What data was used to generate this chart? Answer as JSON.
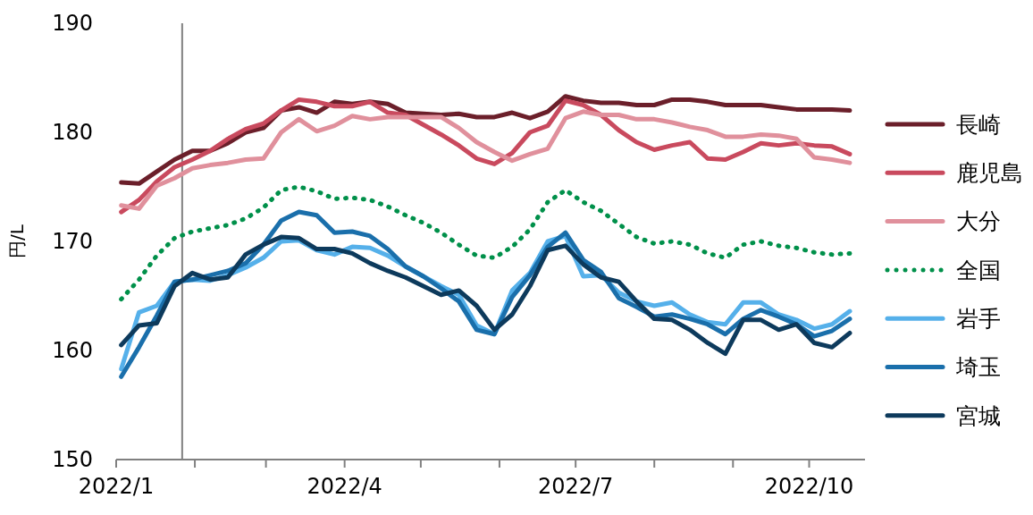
{
  "chart_data": {
    "type": "line",
    "ylabel": "円/L",
    "legend": "right",
    "x": [
      "2022-01-03",
      "2022-01-10",
      "2022-01-17",
      "2022-01-24",
      "2022-01-31",
      "2022-02-07",
      "2022-02-14",
      "2022-02-21",
      "2022-02-28",
      "2022-03-07",
      "2022-03-14",
      "2022-03-21",
      "2022-03-28",
      "2022-04-04",
      "2022-04-11",
      "2022-04-18",
      "2022-04-25",
      "2022-05-02",
      "2022-05-09",
      "2022-05-16",
      "2022-05-23",
      "2022-05-30",
      "2022-06-06",
      "2022-06-13",
      "2022-06-20",
      "2022-06-27",
      "2022-07-04",
      "2022-07-11",
      "2022-07-18",
      "2022-07-25",
      "2022-08-01",
      "2022-08-08",
      "2022-08-15",
      "2022-08-22",
      "2022-08-29",
      "2022-09-05",
      "2022-09-12",
      "2022-09-19",
      "2022-09-26",
      "2022-10-03",
      "2022-10-10",
      "2022-10-17"
    ],
    "xlim": [
      "2022-01-01",
      "2022-10-23"
    ],
    "xticks": [
      {
        "value": "2022-01-01",
        "label": "2022/1"
      },
      {
        "value": "2022-02-01",
        "label": null
      },
      {
        "value": "2022-03-01",
        "label": null
      },
      {
        "value": "2022-04-01",
        "label": "2022/4"
      },
      {
        "value": "2022-05-01",
        "label": null
      },
      {
        "value": "2022-06-01",
        "label": null
      },
      {
        "value": "2022-07-01",
        "label": "2022/7"
      },
      {
        "value": "2022-08-01",
        "label": null
      },
      {
        "value": "2022-09-01",
        "label": null
      },
      {
        "value": "2022-10-01",
        "label": "2022/10"
      }
    ],
    "ylim": [
      150,
      190
    ],
    "yticks": [
      150,
      160,
      170,
      180,
      190
    ],
    "ref_lines": [
      {
        "axis": "x",
        "value": "2022-01-27",
        "color": "#808080"
      }
    ],
    "series": [
      {
        "name": "長崎",
        "color": "#6b1f2a",
        "line_style": "solid",
        "values": [
          175.4,
          175.3,
          176.4,
          177.5,
          178.3,
          178.3,
          179,
          180,
          180.4,
          182,
          182.3,
          181.8,
          182.8,
          182.6,
          182.8,
          182.6,
          181.8,
          181.7,
          181.6,
          181.7,
          181.4,
          181.4,
          181.8,
          181.3,
          181.9,
          183.3,
          182.9,
          182.7,
          182.7,
          182.5,
          182.5,
          183,
          183,
          182.8,
          182.5,
          182.5,
          182.5,
          182.3,
          182.1,
          182.1,
          182.1,
          182
        ]
      },
      {
        "name": "鹿児島",
        "color": "#c94a5e",
        "line_style": "solid",
        "values": [
          172.7,
          173.8,
          175.5,
          176.8,
          177.5,
          178.3,
          179.4,
          180.3,
          180.8,
          182,
          183,
          182.8,
          182.4,
          182.4,
          182.8,
          181.8,
          181.6,
          180.7,
          179.8,
          178.8,
          177.6,
          177.1,
          178.1,
          180,
          180.6,
          182.9,
          182.5,
          181.6,
          180.2,
          179.1,
          178.4,
          178.8,
          179.1,
          177.6,
          177.5,
          178.2,
          179,
          178.8,
          179,
          178.8,
          178.7,
          178
        ]
      },
      {
        "name": "大分",
        "color": "#e0909c",
        "line_style": "solid",
        "values": [
          173.3,
          173,
          175.1,
          175.8,
          176.7,
          177,
          177.2,
          177.5,
          177.6,
          180,
          181.2,
          180.1,
          180.6,
          181.5,
          181.2,
          181.4,
          181.4,
          181.4,
          181.4,
          180.4,
          179.1,
          178.2,
          177.4,
          178,
          178.5,
          181.3,
          181.9,
          181.6,
          181.6,
          181.2,
          181.2,
          180.9,
          180.5,
          180.2,
          179.6,
          179.6,
          179.8,
          179.7,
          179.4,
          177.7,
          177.5,
          177.2
        ]
      },
      {
        "name": "全国",
        "color": "#00904a",
        "line_style": "dotted",
        "values": [
          164.7,
          166.5,
          168.7,
          170.3,
          170.9,
          171.2,
          171.5,
          172.1,
          173.1,
          174.7,
          175,
          174.6,
          173.9,
          174,
          173.8,
          173.2,
          172.4,
          171.7,
          170.8,
          169.7,
          168.7,
          168.5,
          169.5,
          171.1,
          173.6,
          174.7,
          173.6,
          172.8,
          171.6,
          170.4,
          169.8,
          170,
          169.7,
          168.9,
          168.5,
          169.7,
          170,
          169.6,
          169.4,
          169,
          168.8,
          168.9
        ]
      },
      {
        "name": "岩手",
        "color": "#55b0ea",
        "line_style": "solid",
        "values": [
          158.3,
          163.5,
          164.1,
          166.3,
          166.5,
          166.4,
          166.9,
          167.6,
          168.5,
          170,
          170.1,
          169.2,
          168.8,
          169.5,
          169.4,
          168.7,
          167.7,
          166.8,
          165.9,
          165.1,
          162.3,
          161.5,
          165.5,
          167.1,
          170,
          170.5,
          166.8,
          166.9,
          165.3,
          164.5,
          164.1,
          164.4,
          163.3,
          162.6,
          162.4,
          164.4,
          164.4,
          163.3,
          162.8,
          162,
          162.4,
          163.6
        ]
      },
      {
        "name": "埼玉",
        "color": "#1a6fab",
        "line_style": "solid",
        "values": [
          157.6,
          160.3,
          163.2,
          166.3,
          166.5,
          166.9,
          167.3,
          168,
          169.7,
          171.9,
          172.7,
          172.4,
          170.8,
          170.9,
          170.5,
          169.3,
          167.7,
          166.8,
          165.7,
          164.5,
          161.9,
          161.5,
          164.9,
          166.9,
          169.5,
          170.8,
          168.3,
          167.2,
          164.8,
          164,
          163.1,
          163.3,
          162.9,
          162.4,
          161.5,
          162.9,
          163.7,
          163.1,
          162.4,
          161.3,
          161.8,
          162.9
        ]
      },
      {
        "name": "宮城",
        "color": "#0d3a5c",
        "line_style": "solid",
        "values": [
          160.5,
          162.3,
          162.5,
          165.9,
          167.1,
          166.5,
          166.7,
          168.8,
          169.7,
          170.4,
          170.3,
          169.3,
          169.3,
          168.9,
          168,
          167.3,
          166.7,
          165.9,
          165.1,
          165.5,
          164.1,
          161.9,
          163.3,
          165.9,
          169.2,
          169.6,
          167.9,
          166.7,
          166.3,
          164.5,
          162.9,
          162.8,
          161.9,
          160.7,
          159.7,
          162.8,
          162.8,
          161.9,
          162.4,
          160.7,
          160.3,
          161.6
        ]
      }
    ]
  }
}
